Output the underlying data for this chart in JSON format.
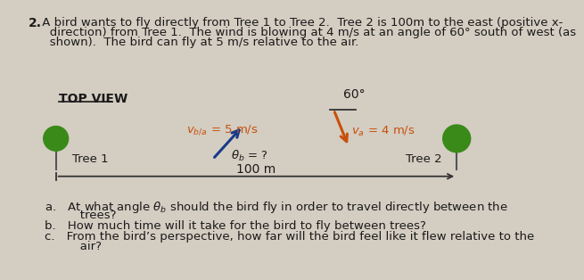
{
  "background_color": "#d4cdc2",
  "title_number": "2.",
  "title_line1": " A bird wants to fly directly from Tree 1 to Tree 2.  Tree 2 is 100m to the east (positive x-",
  "title_line2": "   direction) from Tree 1.  The wind is blowing at 4 m/s at an angle of 60° south of west (as",
  "title_line3": "   shown).  The bird can fly at 5 m/s relative to the air.",
  "top_view_label": "TOP VIEW",
  "vb_label": "$v_{b/a}$ = 5 m/s",
  "theta_label": "$\\theta_b$ = ?",
  "va_label": "$v_a$ = 4 m/s",
  "angle_label": "60°",
  "tree1_label": "Tree 1",
  "tree2_label": "Tree 2",
  "distance_label": "100 m",
  "qa": "a. At what angle $\\theta_b$ should the bird fly in order to travel directly between the",
  "qa2": "   trees?",
  "qb": "b. How much time will it take for the bird to fly between trees?",
  "qc": "c. From the bird’s perspective, how far will the bird feel like it flew relative to the",
  "qc2": "   air?",
  "text_color": "#1a1a1a",
  "orange_color": "#c8500a",
  "blue_arrow_color": "#1a3a8a",
  "green_color": "#3a8a1a",
  "tree_trunk_color": "#555555",
  "line_color": "#333333"
}
